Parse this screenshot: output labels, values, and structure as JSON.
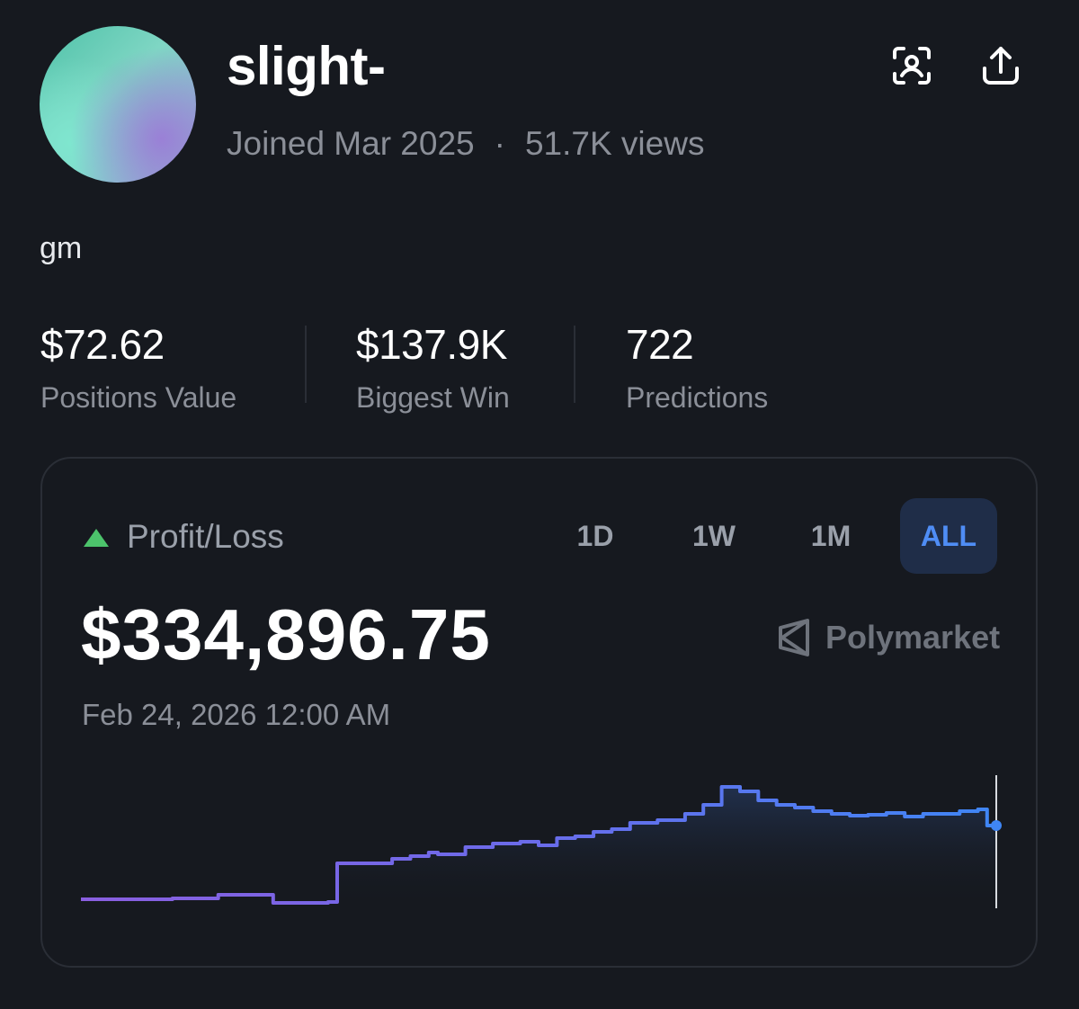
{
  "profile": {
    "username": "slight-",
    "joined": "Joined Mar 2025",
    "separator": "·",
    "views": "51.7K views",
    "bio": "gm"
  },
  "stats": [
    {
      "value": "$72.62",
      "label": "Positions Value"
    },
    {
      "value": "$137.9K",
      "label": "Biggest Win"
    },
    {
      "value": "722",
      "label": "Predictions"
    }
  ],
  "pnl": {
    "label": "Profit/Loss",
    "value": "$334,896.75",
    "date": "Feb 24, 2026 12:00 AM",
    "brand": "Polymarket",
    "ranges": [
      "1D",
      "1W",
      "1M",
      "ALL"
    ],
    "active_range": "ALL"
  },
  "colors": {
    "background": "#16191f",
    "accent": "#4f8df5",
    "positive": "#4cc36b",
    "line_start": "#8a5fe0",
    "line_end": "#3f86f5"
  },
  "icons": {
    "scan": "profile-scan-icon",
    "share": "share-upload-icon",
    "indicator": "triangle-up-icon",
    "brand": "polymarket-logo-icon"
  },
  "chart_data": {
    "type": "line",
    "title": "",
    "xlabel": "",
    "ylabel": "",
    "x": [
      0,
      5,
      10,
      15,
      20,
      21,
      24,
      27,
      28,
      31,
      34,
      36,
      38,
      39,
      42,
      45,
      48,
      50,
      52,
      54,
      56,
      58,
      60,
      63,
      66,
      68,
      70,
      72,
      74,
      76,
      78,
      80,
      82,
      84,
      86,
      88,
      90,
      92,
      94,
      96,
      98,
      99,
      100
    ],
    "y": [
      100,
      100,
      101,
      105,
      105,
      96,
      96,
      97,
      140,
      140,
      145,
      148,
      152,
      150,
      158,
      162,
      164,
      160,
      168,
      170,
      175,
      178,
      185,
      188,
      195,
      205,
      225,
      220,
      210,
      205,
      202,
      198,
      195,
      193,
      194,
      196,
      192,
      195,
      195,
      198,
      200,
      182,
      182
    ],
    "ylim": [
      90,
      230
    ],
    "grid": false
  }
}
